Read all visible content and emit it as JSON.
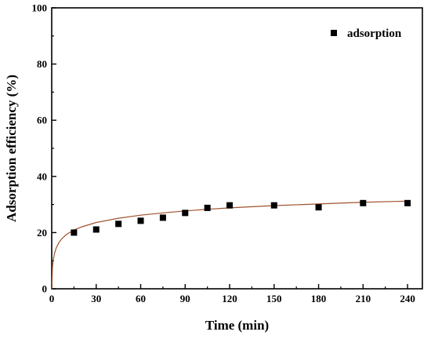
{
  "chart_data": {
    "type": "scatter",
    "xlabel": "Time (min)",
    "ylabel": "Adsorption efficiency (%)",
    "xlim": [
      0,
      250
    ],
    "ylim": [
      0,
      100
    ],
    "x_ticks": [
      0,
      30,
      60,
      90,
      120,
      150,
      180,
      210,
      240
    ],
    "y_ticks": [
      0,
      20,
      40,
      60,
      80,
      100
    ],
    "grid": false,
    "legend_position": "top-right",
    "series": [
      {
        "name": "adsorption",
        "marker": "square",
        "color": "#000000",
        "x": [
          15,
          30,
          45,
          60,
          75,
          90,
          105,
          120,
          150,
          180,
          210,
          240
        ],
        "y": [
          20.0,
          21.1,
          23.1,
          24.2,
          25.3,
          27.0,
          28.8,
          29.7,
          29.7,
          29.0,
          30.5,
          30.5
        ]
      }
    ],
    "fit_curve": {
      "color": "#a0522d",
      "x": [
        0.05,
        0.5,
        1,
        2,
        3,
        5,
        7,
        10,
        15,
        20,
        30,
        45,
        60,
        75,
        90,
        105,
        120,
        150,
        180,
        210,
        240
      ],
      "y": [
        0.0,
        7.8,
        10.2,
        12.8,
        14.5,
        16.6,
        17.9,
        19.4,
        20.9,
        22.0,
        23.6,
        25.1,
        26.2,
        27.0,
        27.7,
        28.3,
        28.8,
        29.6,
        30.2,
        30.8,
        31.2
      ]
    }
  }
}
